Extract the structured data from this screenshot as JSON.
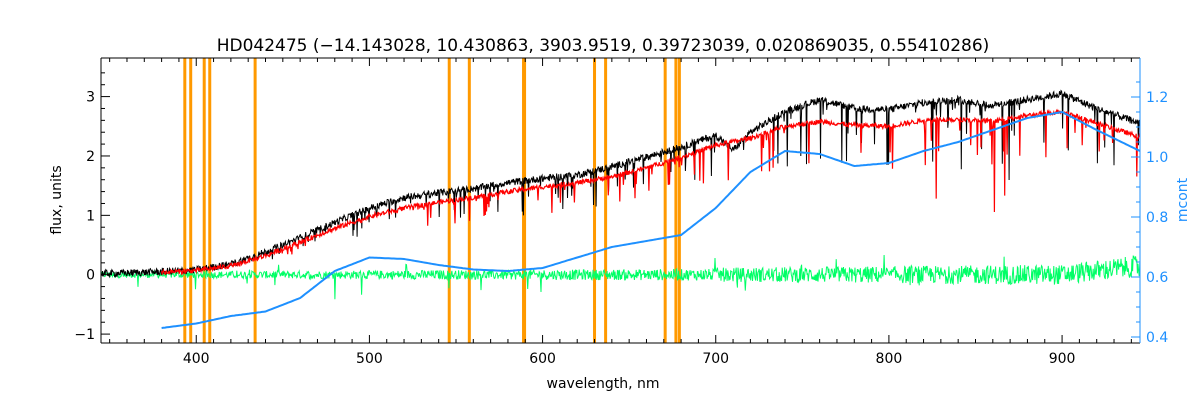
{
  "chart_data": {
    "type": "line",
    "title": "HD042475    (−14.143028, 10.430863, 3903.9519, 0.39723039, 0.020869035, 0.55410286)",
    "xlabel": "wavelength, nm",
    "ylabel": "flux, units",
    "y2label": "mcont",
    "xlim": [
      345,
      945
    ],
    "ylim": [
      -1.15,
      3.65
    ],
    "y2lim": [
      0.38,
      1.33
    ],
    "x_ticks": [
      400,
      500,
      600,
      700,
      800,
      900
    ],
    "y_ticks": [
      -1,
      0,
      1,
      2,
      3
    ],
    "y2_ticks": [
      0.4,
      0.6,
      0.8,
      1.0,
      1.2
    ],
    "x_tick_labels": [
      "400",
      "500",
      "600",
      "700",
      "800",
      "900"
    ],
    "y_tick_labels": [
      "−1",
      "0",
      "1",
      "2",
      "3"
    ],
    "y2_tick_labels": [
      "0.4",
      "0.6",
      "0.8",
      "1.0",
      "1.2"
    ],
    "grid": false,
    "colors": {
      "observed": "#000000",
      "model": "#ff0000",
      "residual": "#00ff66",
      "mcont": "#1e90ff",
      "mask": "#ff9900",
      "right_axis": "#1e90ff"
    },
    "vertical_lines": [
      393.4,
      396.8,
      404.6,
      407.8,
      434.0,
      546.1,
      557.7,
      589.0,
      589.6,
      630.0,
      636.4,
      670.8,
      677.0,
      679.0
    ],
    "series": [
      {
        "role": "observed",
        "x": [
          345,
          360,
          380,
          400,
          420,
          440,
          460,
          480,
          500,
          520,
          540,
          560,
          580,
          600,
          620,
          640,
          660,
          680,
          700,
          710,
          720,
          740,
          760,
          780,
          800,
          820,
          840,
          860,
          880,
          900,
          920,
          945
        ],
        "y": [
          0.02,
          0.03,
          0.05,
          0.08,
          0.18,
          0.38,
          0.62,
          0.88,
          1.12,
          1.3,
          1.38,
          1.45,
          1.55,
          1.62,
          1.68,
          1.82,
          1.98,
          2.15,
          2.35,
          2.1,
          2.4,
          2.75,
          2.95,
          2.8,
          2.78,
          2.9,
          2.95,
          2.85,
          2.95,
          3.05,
          2.8,
          2.55
        ]
      },
      {
        "role": "model",
        "x": [
          345,
          360,
          380,
          400,
          420,
          440,
          460,
          480,
          500,
          520,
          540,
          560,
          580,
          600,
          620,
          640,
          660,
          680,
          700,
          720,
          740,
          760,
          780,
          800,
          820,
          840,
          860,
          880,
          900,
          920,
          945
        ],
        "y": [
          0.02,
          0.02,
          0.04,
          0.07,
          0.15,
          0.32,
          0.55,
          0.78,
          0.98,
          1.12,
          1.22,
          1.3,
          1.4,
          1.48,
          1.55,
          1.65,
          1.8,
          1.98,
          2.18,
          2.3,
          2.5,
          2.58,
          2.52,
          2.5,
          2.6,
          2.62,
          2.58,
          2.68,
          2.75,
          2.55,
          2.32
        ]
      },
      {
        "role": "mcont",
        "axis": "right",
        "x": [
          380,
          400,
          420,
          440,
          460,
          480,
          500,
          520,
          540,
          560,
          580,
          600,
          620,
          640,
          660,
          680,
          700,
          720,
          740,
          760,
          780,
          800,
          820,
          840,
          860,
          880,
          900,
          920,
          945
        ],
        "y": [
          0.43,
          0.445,
          0.47,
          0.485,
          0.53,
          0.62,
          0.665,
          0.66,
          0.64,
          0.625,
          0.62,
          0.63,
          0.665,
          0.7,
          0.72,
          0.74,
          0.83,
          0.95,
          1.02,
          1.01,
          0.97,
          0.98,
          1.02,
          1.05,
          1.09,
          1.13,
          1.15,
          1.09,
          1.02
        ]
      },
      {
        "role": "residual",
        "x": [
          345,
          380,
          400,
          440,
          480,
          520,
          560,
          600,
          640,
          680,
          700,
          740,
          780,
          820,
          860,
          900,
          945
        ],
        "y": [
          0.0,
          0.0,
          0.0,
          0.0,
          0.0,
          0.0,
          0.0,
          0.0,
          0.0,
          0.0,
          0.0,
          0.0,
          0.0,
          0.0,
          0.0,
          0.0,
          0.15
        ]
      }
    ]
  }
}
